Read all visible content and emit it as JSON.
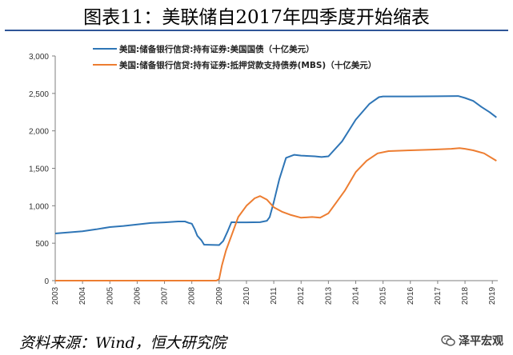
{
  "title": "图表11：美联储自2017年四季度开始缩表",
  "source": "资料来源：Wind，恒大研究院",
  "watermark": "泽平宏观",
  "chart_data": {
    "type": "line",
    "x_ticks": [
      "2003",
      "2004",
      "2005",
      "2006",
      "2007",
      "2008",
      "2009",
      "2010",
      "2011",
      "2012",
      "2013",
      "2014",
      "2015",
      "2016",
      "2017",
      "2018",
      "2019"
    ],
    "y_ticks": [
      "0",
      "500",
      "1,000",
      "1,500",
      "2,000",
      "2,500",
      "3,000"
    ],
    "ylim": [
      0,
      3000
    ],
    "xlim": [
      2003,
      2019.2
    ],
    "legend_position": "top",
    "grid": false,
    "series": [
      {
        "name": "美国:储备银行信贷:持有证券:美国国债（十亿美元）",
        "color": "#2e75b6",
        "points": [
          [
            2003.0,
            630
          ],
          [
            2003.5,
            645
          ],
          [
            2004.0,
            660
          ],
          [
            2004.5,
            685
          ],
          [
            2005.0,
            715
          ],
          [
            2005.5,
            730
          ],
          [
            2006.0,
            750
          ],
          [
            2006.5,
            770
          ],
          [
            2007.0,
            778
          ],
          [
            2007.5,
            790
          ],
          [
            2007.75,
            790
          ],
          [
            2007.9,
            770
          ],
          [
            2008.0,
            760
          ],
          [
            2008.1,
            690
          ],
          [
            2008.2,
            600
          ],
          [
            2008.35,
            540
          ],
          [
            2008.45,
            480
          ],
          [
            2008.7,
            477
          ],
          [
            2009.0,
            475
          ],
          [
            2009.15,
            530
          ],
          [
            2009.3,
            650
          ],
          [
            2009.45,
            780
          ],
          [
            2009.7,
            778
          ],
          [
            2010.0,
            778
          ],
          [
            2010.5,
            780
          ],
          [
            2010.75,
            800
          ],
          [
            2010.85,
            850
          ],
          [
            2011.0,
            1050
          ],
          [
            2011.2,
            1350
          ],
          [
            2011.45,
            1640
          ],
          [
            2011.75,
            1680
          ],
          [
            2012.0,
            1670
          ],
          [
            2012.5,
            1660
          ],
          [
            2012.75,
            1650
          ],
          [
            2013.0,
            1660
          ],
          [
            2013.5,
            1860
          ],
          [
            2014.0,
            2150
          ],
          [
            2014.5,
            2360
          ],
          [
            2014.85,
            2450
          ],
          [
            2015.0,
            2460
          ],
          [
            2016.0,
            2460
          ],
          [
            2017.0,
            2462
          ],
          [
            2017.75,
            2465
          ],
          [
            2018.0,
            2440
          ],
          [
            2018.3,
            2400
          ],
          [
            2018.6,
            2320
          ],
          [
            2018.9,
            2250
          ],
          [
            2019.15,
            2180
          ]
        ]
      },
      {
        "name": "美国:储备银行信贷:持有证券:抵押贷款支持债券(MBS)（十亿美元）",
        "color": "#ed7d31",
        "points": [
          [
            2003.0,
            0
          ],
          [
            2008.9,
            0
          ],
          [
            2009.0,
            20
          ],
          [
            2009.1,
            200
          ],
          [
            2009.25,
            400
          ],
          [
            2009.45,
            600
          ],
          [
            2009.7,
            850
          ],
          [
            2010.0,
            1000
          ],
          [
            2010.3,
            1100
          ],
          [
            2010.5,
            1130
          ],
          [
            2010.75,
            1080
          ],
          [
            2011.0,
            980
          ],
          [
            2011.3,
            920
          ],
          [
            2011.6,
            880
          ],
          [
            2012.0,
            840
          ],
          [
            2012.4,
            850
          ],
          [
            2012.7,
            840
          ],
          [
            2013.0,
            900
          ],
          [
            2013.3,
            1050
          ],
          [
            2013.6,
            1200
          ],
          [
            2014.0,
            1450
          ],
          [
            2014.4,
            1600
          ],
          [
            2014.8,
            1700
          ],
          [
            2015.2,
            1730
          ],
          [
            2016.0,
            1740
          ],
          [
            2016.8,
            1750
          ],
          [
            2017.5,
            1760
          ],
          [
            2017.8,
            1770
          ],
          [
            2018.0,
            1760
          ],
          [
            2018.3,
            1740
          ],
          [
            2018.7,
            1700
          ],
          [
            2019.15,
            1600
          ]
        ]
      }
    ]
  }
}
